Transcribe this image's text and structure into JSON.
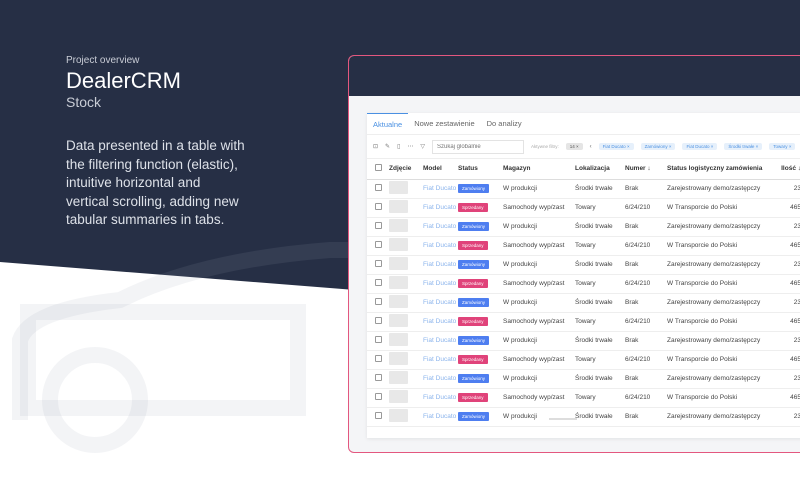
{
  "intro": {
    "eyebrow": "Project overview",
    "title": "DealerCRM",
    "subtitle": "Stock",
    "description": "Data presented in a table with the filtering function (elastic), intuitive horizontal and vertical scrolling, adding new tabular summaries in tabs."
  },
  "colors": {
    "background": "#262f45",
    "accent": "#4a90e2",
    "frame": "#e3577f",
    "ordered": "#4e7ef0",
    "sold": "#e0437a"
  },
  "app": {
    "tabs": [
      "Aktualne",
      "Nowe zestawienie",
      "Do analizy"
    ],
    "search_placeholder": "Szukaj globalnie",
    "active_filters_label": "Aktywne filtry:",
    "filter_count": "14",
    "filters": [
      "Fiat Ducato",
      "Zamówiony",
      "Fiat Ducato",
      "Środki trwałe",
      "Towary"
    ],
    "columns": [
      "Zdjęcie",
      "Model",
      "Status",
      "Magazyn",
      "Lokalizacja",
      "Numer ↓",
      "Status logistyczny zamówienia",
      "Ilość ↓"
    ],
    "rows": [
      {
        "model": "Fiat Ducato",
        "status": "Zamówiony",
        "magazyn": "W produkcji",
        "lokalizacja": "Środki trwałe",
        "numer": "Brak",
        "logistyka": "Zarejestrowany demo/zastępczy",
        "ilosc": "23"
      },
      {
        "model": "Fiat Ducato",
        "status": "Sprzedany",
        "magazyn": "Samochody wyp/zast",
        "lokalizacja": "Towary",
        "numer": "6/24/210",
        "logistyka": "W Transporcie do Polski",
        "ilosc": "465"
      },
      {
        "model": "Fiat Ducato",
        "status": "Zamówiony",
        "magazyn": "W produkcji",
        "lokalizacja": "Środki trwałe",
        "numer": "Brak",
        "logistyka": "Zarejestrowany demo/zastępczy",
        "ilosc": "23"
      },
      {
        "model": "Fiat Ducato",
        "status": "Sprzedany",
        "magazyn": "Samochody wyp/zast",
        "lokalizacja": "Towary",
        "numer": "6/24/210",
        "logistyka": "W Transporcie do Polski",
        "ilosc": "465"
      },
      {
        "model": "Fiat Ducato",
        "status": "Zamówiony",
        "magazyn": "W produkcji",
        "lokalizacja": "Środki trwałe",
        "numer": "Brak",
        "logistyka": "Zarejestrowany demo/zastępczy",
        "ilosc": "23"
      },
      {
        "model": "Fiat Ducato",
        "status": "Sprzedany",
        "magazyn": "Samochody wyp/zast",
        "lokalizacja": "Towary",
        "numer": "6/24/210",
        "logistyka": "W Transporcie do Polski",
        "ilosc": "465"
      },
      {
        "model": "Fiat Ducato",
        "status": "Zamówiony",
        "magazyn": "W produkcji",
        "lokalizacja": "Środki trwałe",
        "numer": "Brak",
        "logistyka": "Zarejestrowany demo/zastępczy",
        "ilosc": "23"
      },
      {
        "model": "Fiat Ducato",
        "status": "Sprzedany",
        "magazyn": "Samochody wyp/zast",
        "lokalizacja": "Towary",
        "numer": "6/24/210",
        "logistyka": "W Transporcie do Polski",
        "ilosc": "465"
      },
      {
        "model": "Fiat Ducato",
        "status": "Zamówiony",
        "magazyn": "W produkcji",
        "lokalizacja": "Środki trwałe",
        "numer": "Brak",
        "logistyka": "Zarejestrowany demo/zastępczy",
        "ilosc": "23"
      },
      {
        "model": "Fiat Ducato",
        "status": "Sprzedany",
        "magazyn": "Samochody wyp/zast",
        "lokalizacja": "Towary",
        "numer": "6/24/210",
        "logistyka": "W Transporcie do Polski",
        "ilosc": "465"
      },
      {
        "model": "Fiat Ducato",
        "status": "Zamówiony",
        "magazyn": "W produkcji",
        "lokalizacja": "Środki trwałe",
        "numer": "Brak",
        "logistyka": "Zarejestrowany demo/zastępczy",
        "ilosc": "23"
      },
      {
        "model": "Fiat Ducato",
        "status": "Sprzedany",
        "magazyn": "Samochody wyp/zast",
        "lokalizacja": "Towary",
        "numer": "6/24/210",
        "logistyka": "W Transporcie do Polski",
        "ilosc": "465"
      },
      {
        "model": "Fiat Ducato",
        "status": "Zamówiony",
        "magazyn": "W produkcji",
        "lokalizacja": "Środki trwałe",
        "numer": "Brak",
        "logistyka": "Zarejestrowany demo/zastępczy",
        "ilosc": "23"
      }
    ]
  }
}
